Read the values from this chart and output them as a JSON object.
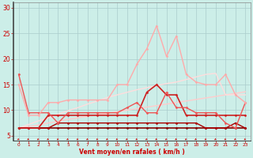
{
  "x": [
    0,
    1,
    2,
    3,
    4,
    5,
    6,
    7,
    8,
    9,
    10,
    11,
    12,
    13,
    14,
    15,
    16,
    17,
    18,
    19,
    20,
    21,
    22,
    23
  ],
  "background_color": "#cceee8",
  "grid_color": "#aacccc",
  "xlabel": "Vent moyen/en rafales ( km/h )",
  "xlabel_color": "#cc0000",
  "yticks": [
    5,
    10,
    15,
    20,
    25,
    30
  ],
  "ylim": [
    4.0,
    31.0
  ],
  "xlim": [
    -0.5,
    23.5
  ],
  "series": [
    {
      "label": "line1_darkred_flat",
      "color": "#880000",
      "linewidth": 1.2,
      "marker": "D",
      "markersize": 1.5,
      "values": [
        6.5,
        6.5,
        6.5,
        6.5,
        6.5,
        6.5,
        6.5,
        6.5,
        6.5,
        6.5,
        6.5,
        6.5,
        6.5,
        6.5,
        6.5,
        6.5,
        6.5,
        6.5,
        6.5,
        6.5,
        6.5,
        6.5,
        6.5,
        6.5
      ]
    },
    {
      "label": "line2_dark_slight",
      "color": "#aa0000",
      "linewidth": 1.0,
      "marker": "D",
      "markersize": 1.5,
      "values": [
        6.5,
        6.5,
        6.5,
        6.5,
        7.5,
        7.5,
        7.5,
        7.5,
        7.5,
        7.5,
        7.5,
        7.5,
        7.5,
        7.5,
        7.5,
        7.5,
        7.5,
        7.5,
        7.5,
        6.5,
        6.5,
        6.5,
        7.5,
        6.5
      ]
    },
    {
      "label": "line3_medium_red",
      "color": "#cc2222",
      "linewidth": 1.2,
      "marker": "D",
      "markersize": 1.5,
      "values": [
        6.5,
        6.5,
        6.5,
        9.0,
        9.0,
        9.0,
        9.0,
        9.0,
        9.0,
        9.0,
        9.0,
        9.0,
        9.0,
        13.5,
        15.0,
        13.0,
        13.0,
        9.0,
        9.0,
        9.0,
        9.0,
        9.0,
        9.0,
        9.0
      ]
    },
    {
      "label": "line4_medium_light",
      "color": "#ee5555",
      "linewidth": 1.0,
      "marker": "D",
      "markersize": 1.5,
      "values": [
        17.0,
        9.5,
        9.5,
        9.5,
        7.5,
        9.5,
        9.5,
        9.5,
        9.5,
        9.5,
        9.5,
        10.5,
        11.5,
        9.5,
        9.5,
        13.5,
        10.5,
        10.5,
        9.5,
        9.5,
        9.5,
        7.5,
        6.5,
        11.5
      ]
    },
    {
      "label": "line5_lightest_peak",
      "color": "#ffaaaa",
      "linewidth": 1.0,
      "marker": "D",
      "markersize": 1.5,
      "values": [
        15.0,
        9.0,
        9.0,
        11.5,
        11.5,
        12.0,
        12.0,
        12.0,
        12.0,
        12.0,
        15.0,
        15.0,
        19.0,
        22.0,
        26.5,
        20.5,
        24.5,
        17.0,
        15.5,
        15.0,
        15.0,
        17.0,
        13.0,
        11.5
      ]
    },
    {
      "label": "line6_trend_lower",
      "color": "#ffcccc",
      "linewidth": 1.0,
      "marker": "None",
      "markersize": 0,
      "values": [
        6.5,
        6.8,
        7.1,
        7.5,
        7.8,
        8.2,
        8.5,
        8.8,
        9.1,
        9.4,
        9.7,
        10.0,
        10.3,
        10.6,
        10.9,
        11.2,
        11.5,
        11.8,
        12.1,
        12.4,
        12.7,
        13.0,
        13.3,
        13.6
      ]
    },
    {
      "label": "line7_trend_upper",
      "color": "#ffdddd",
      "linewidth": 1.0,
      "marker": "None",
      "markersize": 0,
      "values": [
        6.5,
        7.2,
        7.9,
        8.5,
        9.2,
        9.9,
        10.5,
        11.2,
        11.8,
        12.5,
        13.0,
        13.5,
        14.0,
        14.4,
        14.8,
        15.2,
        15.5,
        16.0,
        16.5,
        17.0,
        17.2,
        13.0,
        13.0,
        13.0
      ]
    }
  ]
}
